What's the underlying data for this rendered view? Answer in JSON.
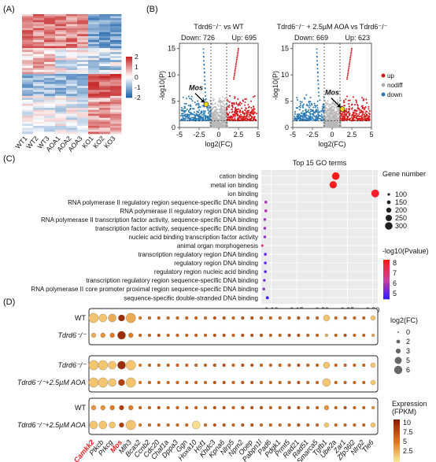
{
  "panels": {
    "A": {
      "label": "(A)",
      "columns": [
        "WT1",
        "WT2",
        "WT3",
        "AOA1",
        "AOA2",
        "AOA3",
        "KO1",
        "KO2",
        "KO3"
      ],
      "colorbar_ticks": [
        "2",
        "1",
        "0",
        "-1",
        "-2"
      ],
      "colors": {
        "high": "#c62828",
        "mid": "#ffffff",
        "low": "#2166ac"
      }
    },
    "B": {
      "label": "(B)",
      "left": {
        "title": "Tdrd6⁻/⁻ vs WT",
        "down_label": "Down: 726",
        "up_label": "Up: 695",
        "highlight_gene": "Mos"
      },
      "right": {
        "title": "Tdrd6⁻/⁻ + 2.5µM AOA  vs Tdrd6⁻/⁻",
        "down_label": "Down: 669",
        "up_label": "Up: 623",
        "highlight_gene": "Mos"
      },
      "x_label": "log2(FC)",
      "y_label": "-log10(P)",
      "x_ticks": [
        "-5",
        "-2.5",
        "0",
        "2.5",
        "5"
      ],
      "y_ticks": [
        "15",
        "10",
        "5",
        "0"
      ],
      "legend": [
        {
          "label": "up",
          "color": "#d7191c"
        },
        {
          "label": "nodiff",
          "color": "#b0b0b0"
        },
        {
          "label": "down",
          "color": "#2c7bb6"
        }
      ]
    },
    "C": {
      "label": "(C)",
      "title": "Top 15 GO terms",
      "size_legend_title": "Gene number",
      "size_legend": [
        "100",
        "150",
        "200",
        "250",
        "300"
      ],
      "color_legend_title": "-log10(Pvalue)",
      "color_legend_ticks": [
        "8",
        "7",
        "6",
        "5"
      ],
      "x_ticks": [
        "0.10",
        "0.15",
        "0.20",
        "0.25",
        "0.30"
      ]
    },
    "D": {
      "label": "(D)",
      "row_labels": [
        [
          "WT",
          "Tdrd6⁻/⁻"
        ],
        [
          "Tdrd6⁻/⁻",
          "Tdrd6⁻/⁻+2.5µM AOA"
        ],
        [
          "WT",
          "Tdrd6⁻/⁻+2.5µM AOA"
        ]
      ],
      "genes": [
        "Camkk2",
        "Ptkcb",
        "Prkcg",
        "Mos",
        "Mlh3",
        "Bcas2",
        "Ccnb2",
        "Cdc20",
        "Chaf1a",
        "Dppa3",
        "Ggn",
        "Hoxa10",
        "Hsf1",
        "Khdc3",
        "Kpna6",
        "Nlrp5",
        "Npm2",
        "Ooep",
        "Pabpn1l",
        "Pad6",
        "Pdgk1",
        "Prmt5",
        "Rad21",
        "Rad51",
        "Smarca5",
        "Tgfb1",
        "Ube2a",
        "Zar1",
        "Zfp36l2",
        "Nlrp2",
        "Tle6"
      ],
      "highlight_genes": [
        "Camkk2",
        "Mos"
      ],
      "size_legend_title": "log2(FC)",
      "size_legend": [
        "0",
        "2",
        "3",
        "5",
        "6"
      ],
      "color_legend_title": "Expression\n(FPKM)",
      "color_legend_ticks": [
        "10",
        "7.5",
        "5",
        "2.5"
      ]
    }
  },
  "chart_data": [
    {
      "type": "heatmap",
      "panel": "A",
      "columns": [
        "WT1",
        "WT2",
        "WT3",
        "AOA1",
        "AOA2",
        "AOA3",
        "KO1",
        "KO2",
        "KO3"
      ],
      "value_range": [
        -2,
        2
      ],
      "row_count": 60
    },
    {
      "type": "scatter",
      "panel": "B-left",
      "title": "Tdrd6⁻/⁻ vs WT",
      "xlabel": "log2(FC)",
      "ylabel": "-log10(P)",
      "xlim": [
        -5,
        5
      ],
      "ylim": [
        0,
        16
      ],
      "thresholds": {
        "x": [
          -1,
          1
        ],
        "y": 1.3
      },
      "counts": {
        "down": 726,
        "up": 695
      },
      "highlight": {
        "gene": "Mos",
        "x": -1.6,
        "y": 4.4
      }
    },
    {
      "type": "scatter",
      "panel": "B-right",
      "title": "Tdrd6⁻/⁻ + 2.5µM AOA  vs Tdrd6⁻/⁻",
      "xlabel": "log2(FC)",
      "ylabel": "-log10(P)",
      "xlim": [
        -5,
        5
      ],
      "ylim": [
        0,
        16
      ],
      "thresholds": {
        "x": [
          -1,
          1
        ],
        "y": 1.3
      },
      "counts": {
        "down": 669,
        "up": 623
      },
      "highlight": {
        "gene": "Mos",
        "x": 1.3,
        "y": 3.5
      }
    },
    {
      "type": "scatter",
      "panel": "C",
      "title": "Top 15 GO terms",
      "terms": [
        {
          "term": "cation binding",
          "ratio": 0.227,
          "gene_number": 300,
          "neglog10p": 8.3
        },
        {
          "term": "metal ion binding",
          "ratio": 0.222,
          "gene_number": 290,
          "neglog10p": 8.2
        },
        {
          "term": "ion binding",
          "ratio": 0.305,
          "gene_number": 310,
          "neglog10p": 8.0
        },
        {
          "term": "RNA polymerase II regulatory region sequence-specific DNA binding",
          "ratio": 0.089,
          "gene_number": 115,
          "neglog10p": 5.8
        },
        {
          "term": "RNA polymerase II regulatory region DNA binding",
          "ratio": 0.089,
          "gene_number": 115,
          "neglog10p": 5.8
        },
        {
          "term": "RNA polymerase II transcription factor activity, sequence-specific DNA binding",
          "ratio": 0.087,
          "gene_number": 110,
          "neglog10p": 5.6
        },
        {
          "term": "transcription factor activity, sequence-specific DNA binding",
          "ratio": 0.087,
          "gene_number": 110,
          "neglog10p": 5.5
        },
        {
          "term": "nucleic acid binding transcription factor activity",
          "ratio": 0.087,
          "gene_number": 110,
          "neglog10p": 5.5
        },
        {
          "term": "animal organ morphogenesis",
          "ratio": 0.082,
          "gene_number": 100,
          "neglog10p": 6.8
        },
        {
          "term": "transcription regulatory region DNA binding",
          "ratio": 0.088,
          "gene_number": 112,
          "neglog10p": 4.8
        },
        {
          "term": "regulatory region DNA binding",
          "ratio": 0.088,
          "gene_number": 112,
          "neglog10p": 4.8
        },
        {
          "term": "regulatory region nucleic acid binding",
          "ratio": 0.088,
          "gene_number": 112,
          "neglog10p": 4.7
        },
        {
          "term": "transcription regulatory region sequence-specific DNA binding",
          "ratio": 0.086,
          "gene_number": 108,
          "neglog10p": 5.2
        },
        {
          "term": "RNA polymerase II core promoter proximal region sequence-specific DNA binding",
          "ratio": 0.085,
          "gene_number": 105,
          "neglog10p": 5.3
        },
        {
          "term": "sequence-specific double-stranded DNA binding",
          "ratio": 0.092,
          "gene_number": 120,
          "neglog10p": 4.3
        }
      ],
      "xlim": [
        0.08,
        0.31
      ],
      "size_range": [
        100,
        300
      ],
      "color_range": [
        4.3,
        8.3
      ]
    },
    {
      "type": "scatter",
      "panel": "D",
      "genes": [
        "Camkk2",
        "Ptkcb",
        "Prkcg",
        "Mos",
        "Mlh3",
        "Bcas2",
        "Ccnb2",
        "Cdc20",
        "Chaf1a",
        "Dppa3",
        "Ggn",
        "Hoxa10",
        "Hsf1",
        "Khdc3",
        "Kpna6",
        "Nlrp5",
        "Npm2",
        "Ooep",
        "Pabpn1l",
        "Pad6",
        "Pdgk1",
        "Prmt5",
        "Rad21",
        "Rad51",
        "Smarca5",
        "Tgfb1",
        "Ube2a",
        "Zar1",
        "Zfp36l2",
        "Nlrp2",
        "Tle6"
      ],
      "groups": [
        {
          "name": "WT / Tdrd6-/-",
          "log2fc": [
            [
              5,
              4,
              4,
              3,
              5,
              1,
              1,
              1,
              1,
              1,
              1,
              1,
              1,
              1,
              1,
              1,
              1,
              1,
              1,
              1,
              1,
              1,
              1,
              1,
              1,
              3,
              1,
              1,
              1,
              1,
              2
            ],
            [
              2,
              2,
              2,
              4,
              2,
              1,
              1,
              1,
              1,
              1,
              1,
              1,
              1,
              1,
              1,
              1,
              1,
              1,
              1,
              1,
              1,
              1,
              1,
              1,
              1,
              1,
              1,
              1,
              1,
              1,
              1
            ]
          ],
          "fpkm": [
            [
              3,
              3,
              4,
              10,
              4,
              6,
              7,
              7,
              7,
              7,
              7,
              7,
              7,
              8,
              8,
              7,
              8,
              8,
              7,
              7,
              7,
              7,
              8,
              7,
              7,
              3,
              7,
              7,
              7,
              7,
              3
            ],
            [
              4,
              5,
              6,
              10,
              6,
              7,
              7,
              8,
              7,
              7,
              7,
              7,
              7,
              8,
              8,
              7,
              8,
              8,
              8,
              7,
              7,
              8,
              8,
              7,
              7,
              4,
              7,
              8,
              7,
              7,
              4
            ]
          ]
        },
        {
          "name": "Tdrd6-/- / Tdrd6-/-+2.5uM AOA",
          "log2fc": [
            [
              5,
              5,
              4,
              4,
              5,
              1,
              1,
              1,
              1,
              1,
              1,
              1,
              1,
              1,
              1,
              1,
              1,
              1,
              1,
              1,
              1,
              1,
              1,
              1,
              1,
              3,
              1,
              1,
              1,
              1,
              2
            ],
            [
              5,
              5,
              4,
              3,
              5,
              1,
              1,
              1,
              1,
              1,
              1,
              1,
              1,
              1,
              1,
              1,
              1,
              1,
              1,
              1,
              1,
              1,
              1,
              1,
              1,
              4,
              1,
              1,
              1,
              1,
              2
            ]
          ],
          "fpkm": [
            [
              3,
              3,
              3,
              10,
              3,
              6,
              7,
              7,
              7,
              7,
              7,
              7,
              7,
              8,
              8,
              7,
              8,
              8,
              7,
              7,
              7,
              7,
              8,
              7,
              7,
              3,
              7,
              7,
              7,
              7,
              3
            ],
            [
              3,
              3,
              3,
              9,
              3,
              6,
              7,
              7,
              7,
              7,
              7,
              7,
              7,
              8,
              8,
              7,
              8,
              8,
              7,
              7,
              7,
              7,
              8,
              7,
              7,
              3,
              7,
              7,
              7,
              7,
              3
            ]
          ]
        },
        {
          "name": "WT / Tdrd6-/-+2.5uM AOA",
          "log2fc": [
            [
              2,
              2,
              2,
              2,
              2,
              1,
              1,
              1,
              1,
              1,
              1,
              1,
              1,
              1,
              1,
              1,
              1,
              1,
              1,
              1,
              1,
              1,
              1,
              1,
              1,
              2,
              1,
              1,
              1,
              1,
              1
            ],
            [
              4,
              4,
              3,
              2,
              5,
              1,
              1,
              1,
              1,
              1,
              1,
              4,
              1,
              1,
              1,
              1,
              1,
              1,
              1,
              1,
              1,
              1,
              1,
              1,
              1,
              2,
              1,
              1,
              1,
              1,
              2
            ]
          ],
          "fpkm": [
            [
              5,
              5,
              6,
              9,
              6,
              7,
              7,
              8,
              7,
              7,
              7,
              7,
              7,
              8,
              8,
              7,
              8,
              8,
              8,
              7,
              7,
              8,
              8,
              7,
              7,
              5,
              7,
              8,
              7,
              7,
              5
            ],
            [
              3,
              3,
              3,
              9,
              3,
              6,
              7,
              7,
              7,
              7,
              7,
              2,
              7,
              8,
              8,
              7,
              8,
              8,
              7,
              7,
              7,
              7,
              8,
              7,
              7,
              3,
              7,
              7,
              7,
              7,
              3
            ]
          ]
        }
      ],
      "size_range_log2fc": [
        0,
        6
      ],
      "color_range_fpkm": [
        1,
        11
      ]
    }
  ]
}
